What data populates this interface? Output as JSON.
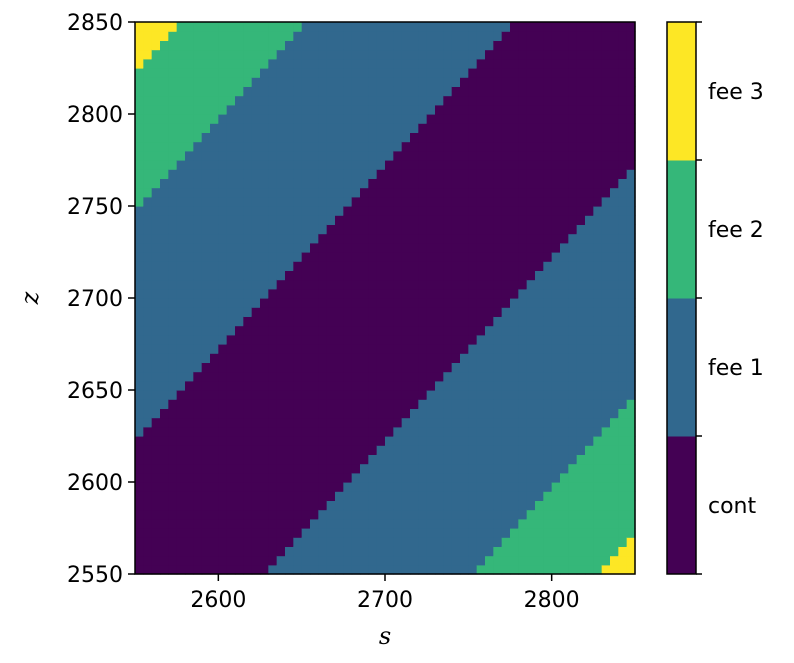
{
  "chart_data": {
    "type": "heatmap",
    "title": "",
    "xlabel": "s",
    "ylabel": "z",
    "xlim": [
      2550,
      2850
    ],
    "ylim": [
      2550,
      2850
    ],
    "grid_step": 5,
    "x_ticks": [
      {
        "value": 2600,
        "label": "2600"
      },
      {
        "value": 2700,
        "label": "2700"
      },
      {
        "value": 2800,
        "label": "2800"
      }
    ],
    "y_ticks": [
      {
        "value": 2550,
        "label": "2550"
      },
      {
        "value": 2600,
        "label": "2600"
      },
      {
        "value": 2650,
        "label": "2650"
      },
      {
        "value": 2700,
        "label": "2700"
      },
      {
        "value": 2750,
        "label": "2750"
      },
      {
        "value": 2800,
        "label": "2800"
      },
      {
        "value": 2850,
        "label": "2850"
      }
    ],
    "classes": [
      {
        "name": "cont",
        "color": "#440154"
      },
      {
        "name": "fee 1",
        "color": "#31688e"
      },
      {
        "name": "fee 2",
        "color": "#35b779"
      },
      {
        "name": "fee 3",
        "color": "#fde725"
      }
    ],
    "decision_rule": {
      "variable": "z - s",
      "regions": [
        {
          "class": "fee 3",
          "when": "z - s >= 275"
        },
        {
          "class": "fee 2",
          "when": "200 <= z - s < 275"
        },
        {
          "class": "fee 1",
          "when": "75 <= z - s < 200"
        },
        {
          "class": "cont",
          "when": "-75 <= z - s < 75"
        },
        {
          "class": "fee 1",
          "when": "-200 <= z - s < -75"
        },
        {
          "class": "fee 2",
          "when": "-275 <= z - s < -200"
        },
        {
          "class": "fee 3",
          "when": "z - s < -275"
        }
      ]
    }
  }
}
